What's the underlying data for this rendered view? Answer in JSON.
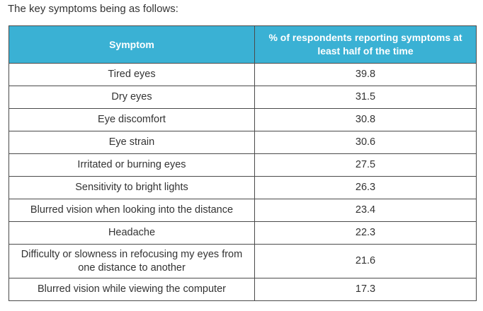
{
  "intro_text": "The key symptoms being as follows:",
  "table": {
    "headers": {
      "symptom": "Symptom",
      "percent": "% of respondents reporting symptoms at least half of the time"
    },
    "rows": [
      {
        "symptom": "Tired eyes",
        "percent": "39.8"
      },
      {
        "symptom": "Dry eyes",
        "percent": "31.5"
      },
      {
        "symptom": "Eye discomfort",
        "percent": "30.8"
      },
      {
        "symptom": "Eye strain",
        "percent": "30.6"
      },
      {
        "symptom": "Irritated or burning eyes",
        "percent": "27.5"
      },
      {
        "symptom": "Sensitivity to bright lights",
        "percent": "26.3"
      },
      {
        "symptom": "Blurred vision when looking into the distance",
        "percent": "23.4"
      },
      {
        "symptom": "Headache",
        "percent": "22.3"
      },
      {
        "symptom": "Difficulty or slowness in refocusing my eyes from one distance to another",
        "percent": "21.6"
      },
      {
        "symptom": "Blurred vision while viewing the computer",
        "percent": "17.3"
      }
    ]
  },
  "colors": {
    "header_background": "#3ab1d4",
    "header_text": "#ffffff",
    "body_text": "#333333",
    "border": "#4a4a4a"
  }
}
